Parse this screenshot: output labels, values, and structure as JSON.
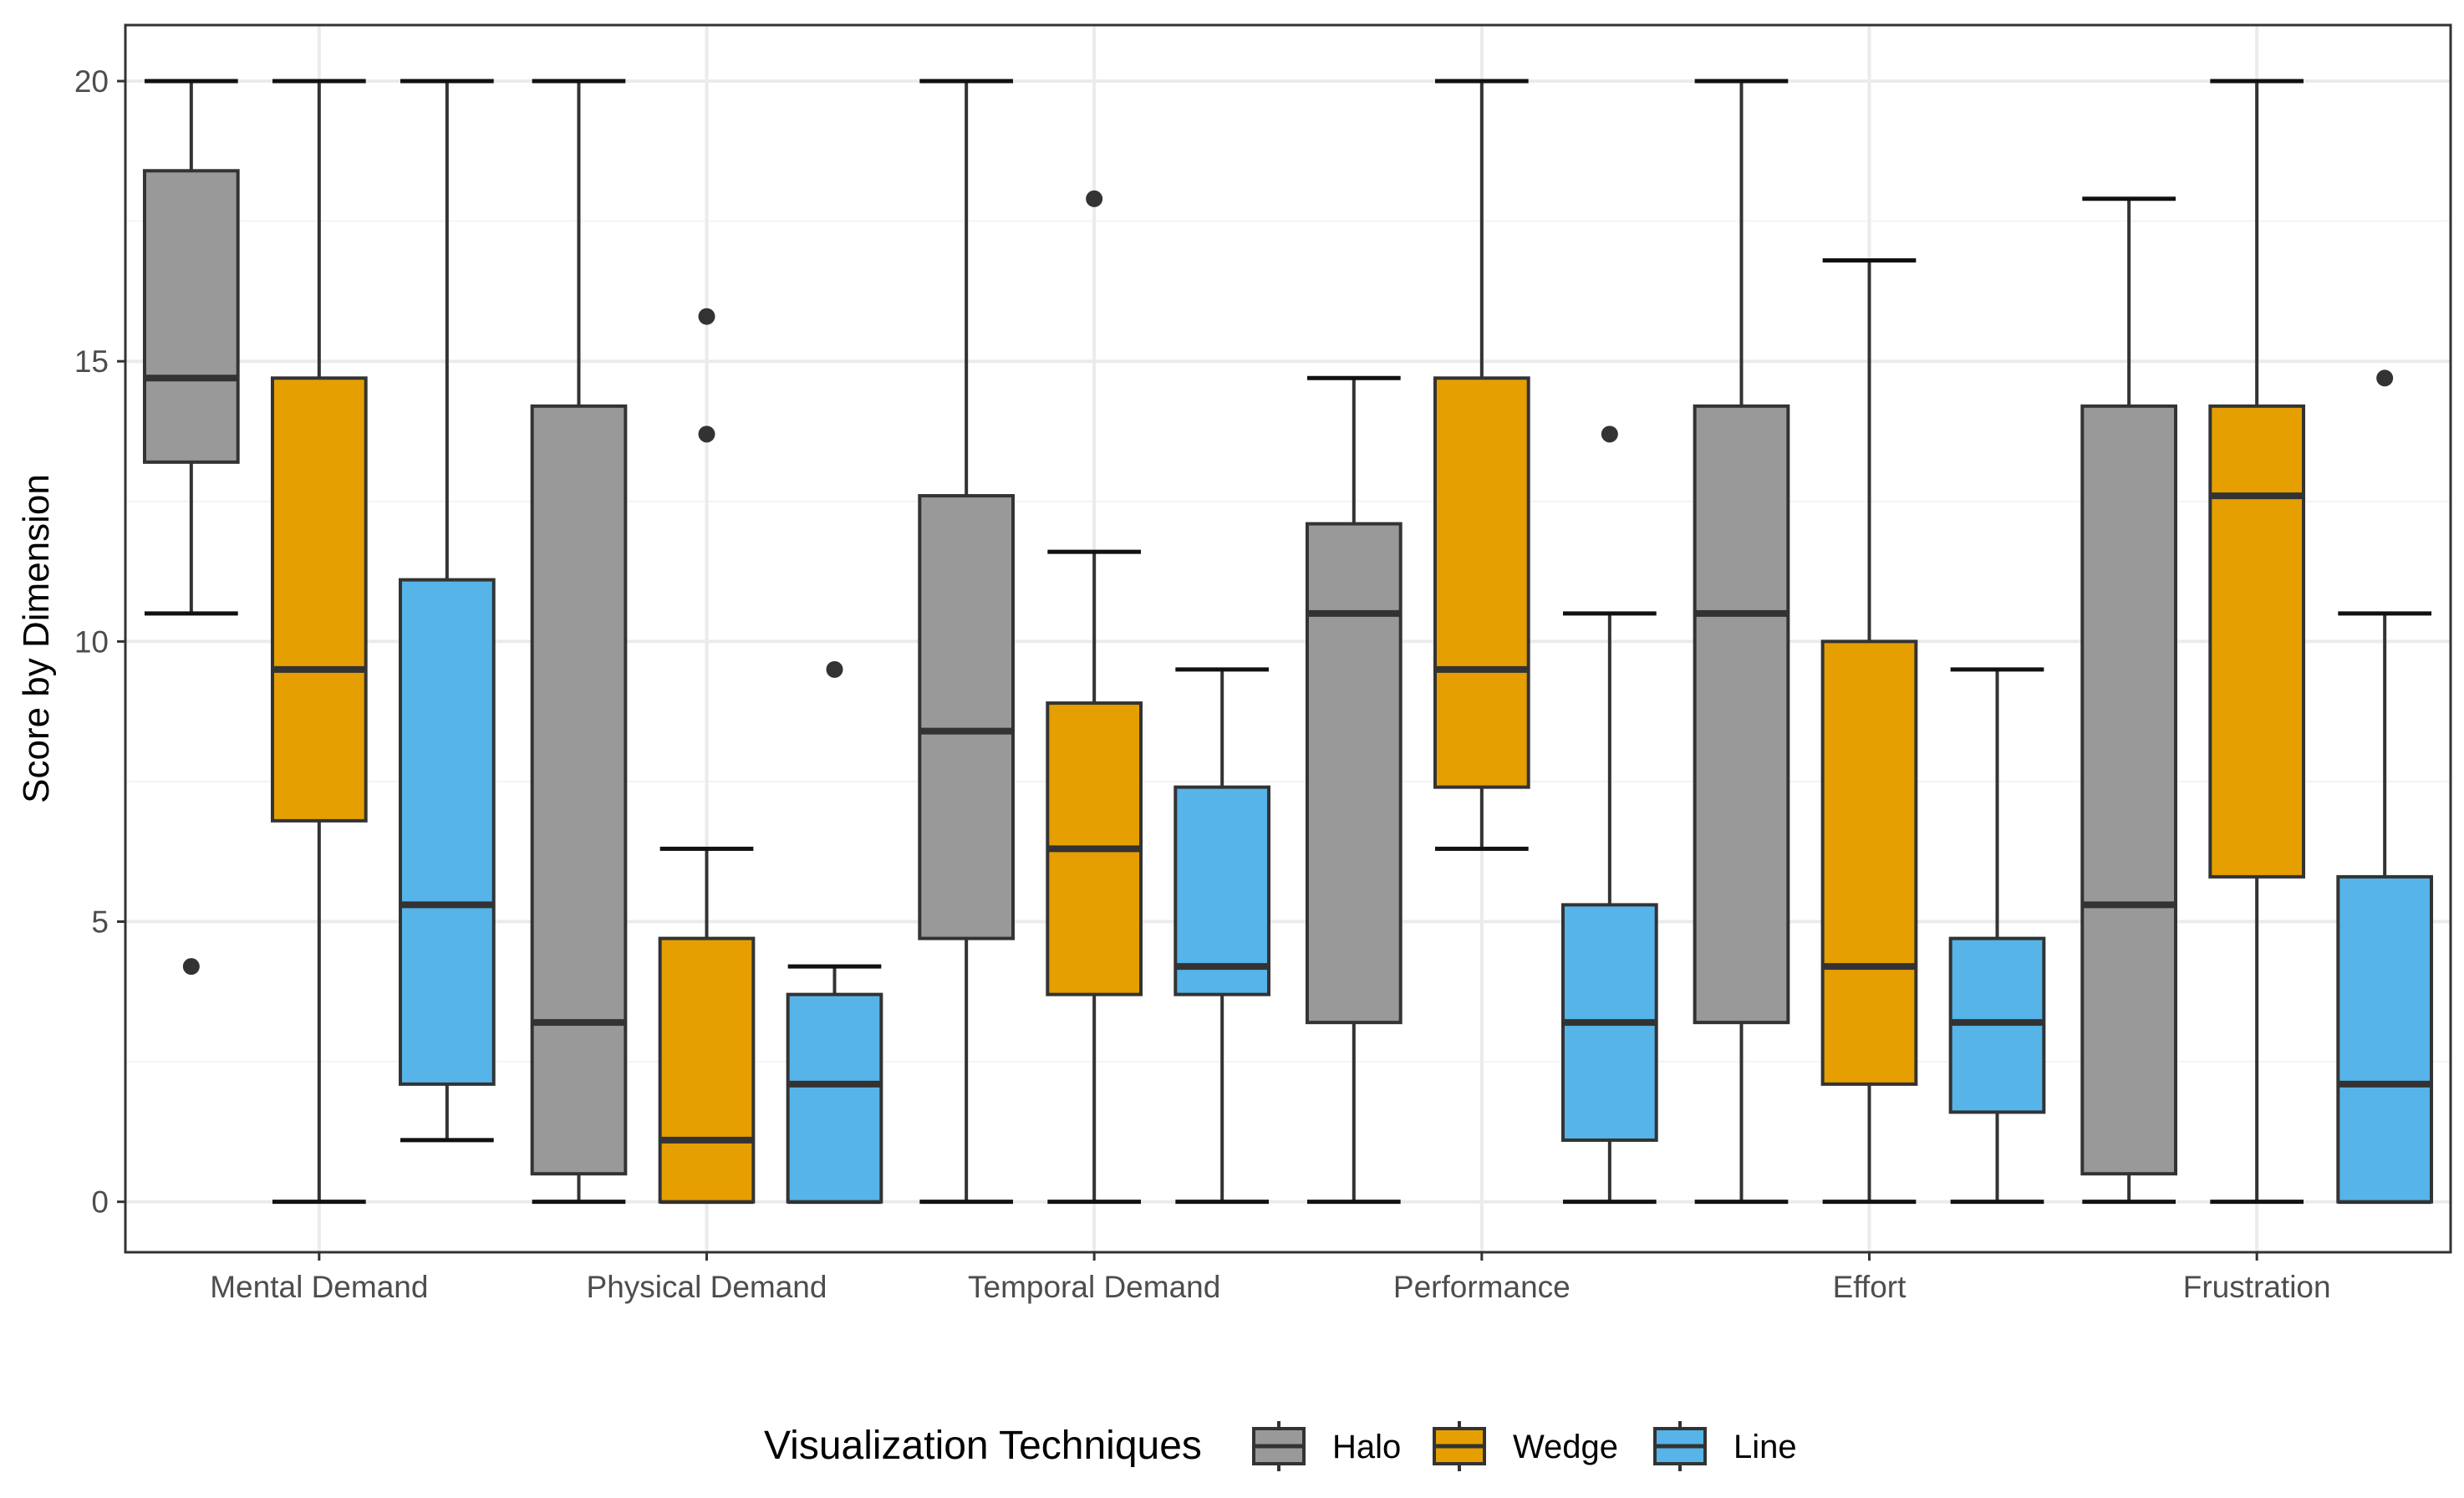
{
  "chart_data": {
    "type": "boxplot",
    "title": "",
    "xlabel": "",
    "ylabel": "Score by Dimension",
    "ylim": [
      -0.9,
      21
    ],
    "yticks": [
      0,
      5,
      10,
      15,
      20
    ],
    "grid": true,
    "legend_position": "bottom",
    "legend_title": "Visualization Techniques",
    "categories": [
      "Mental Demand",
      "Physical Demand",
      "Temporal Demand",
      "Performance",
      "Effort",
      "Frustration"
    ],
    "series": [
      {
        "name": "Halo",
        "color": "#999999",
        "boxes": [
          {
            "whisker_low": 10.5,
            "q1": 13.2,
            "median": 14.7,
            "q3": 18.4,
            "whisker_high": 20,
            "outliers": [
              4.2
            ]
          },
          {
            "whisker_low": 0,
            "q1": 0.5,
            "median": 3.2,
            "q3": 14.2,
            "whisker_high": 20,
            "outliers": []
          },
          {
            "whisker_low": 0,
            "q1": 4.7,
            "median": 8.4,
            "q3": 12.6,
            "whisker_high": 20,
            "outliers": []
          },
          {
            "whisker_low": 0,
            "q1": 3.2,
            "median": 10.5,
            "q3": 12.1,
            "whisker_high": 14.7,
            "outliers": []
          },
          {
            "whisker_low": 0,
            "q1": 3.2,
            "median": 10.5,
            "q3": 14.2,
            "whisker_high": 20,
            "outliers": []
          },
          {
            "whisker_low": 0,
            "q1": 0.5,
            "median": 5.3,
            "q3": 14.2,
            "whisker_high": 17.9,
            "outliers": []
          }
        ]
      },
      {
        "name": "Wedge",
        "color": "#E69F00",
        "boxes": [
          {
            "whisker_low": 0,
            "q1": 6.8,
            "median": 9.5,
            "q3": 14.7,
            "whisker_high": 20,
            "outliers": []
          },
          {
            "whisker_low": 0,
            "q1": 0,
            "median": 1.1,
            "q3": 4.7,
            "whisker_high": 6.3,
            "outliers": [
              13.7,
              15.8
            ]
          },
          {
            "whisker_low": 0,
            "q1": 3.7,
            "median": 6.3,
            "q3": 8.9,
            "whisker_high": 11.6,
            "outliers": [
              17.9
            ]
          },
          {
            "whisker_low": 6.3,
            "q1": 7.4,
            "median": 9.5,
            "q3": 14.7,
            "whisker_high": 20,
            "outliers": []
          },
          {
            "whisker_low": 0,
            "q1": 2.1,
            "median": 4.2,
            "q3": 10.0,
            "whisker_high": 16.8,
            "outliers": []
          },
          {
            "whisker_low": 0,
            "q1": 5.8,
            "median": 12.6,
            "q3": 14.2,
            "whisker_high": 20,
            "outliers": []
          }
        ]
      },
      {
        "name": "Line",
        "color": "#56B4E9",
        "boxes": [
          {
            "whisker_low": 1.1,
            "q1": 2.1,
            "median": 5.3,
            "q3": 11.1,
            "whisker_high": 20,
            "outliers": []
          },
          {
            "whisker_low": 0,
            "q1": 0,
            "median": 2.1,
            "q3": 3.7,
            "whisker_high": 4.2,
            "outliers": [
              9.5
            ]
          },
          {
            "whisker_low": 0,
            "q1": 3.7,
            "median": 4.2,
            "q3": 7.4,
            "whisker_high": 9.5,
            "outliers": []
          },
          {
            "whisker_low": 0,
            "q1": 1.1,
            "median": 3.2,
            "q3": 5.3,
            "whisker_high": 10.5,
            "outliers": [
              13.7
            ]
          },
          {
            "whisker_low": 0,
            "q1": 1.6,
            "median": 3.2,
            "q3": 4.7,
            "whisker_high": 9.5,
            "outliers": []
          },
          {
            "whisker_low": 0,
            "q1": 0,
            "median": 2.1,
            "q3": 5.8,
            "whisker_high": 10.5,
            "outliers": [
              14.7
            ]
          }
        ]
      }
    ]
  }
}
